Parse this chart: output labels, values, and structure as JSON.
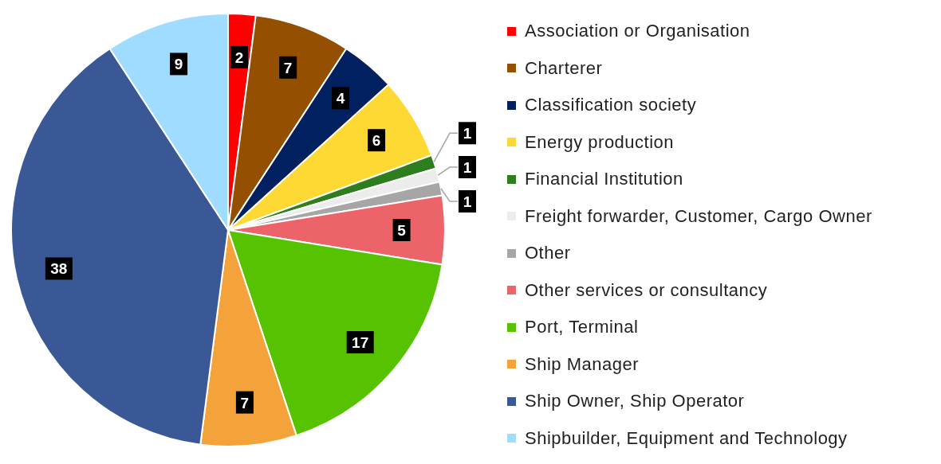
{
  "chart_data": {
    "type": "pie",
    "categories": [
      "Association or Organisation",
      "Charterer",
      "Classification society",
      "Energy production",
      "Financial Institution",
      "Freight forwarder, Customer, Cargo Owner",
      "Other",
      "Other services or consultancy",
      "Port, Terminal",
      "Ship Manager",
      "Ship Owner, Ship Operator",
      "Shipbuilder, Equipment and Technology"
    ],
    "values": [
      2,
      7,
      4,
      6,
      1,
      1,
      1,
      5,
      17,
      7,
      38,
      9
    ],
    "colors": [
      "#ff0000",
      "#954f00",
      "#002060",
      "#ffd933",
      "#2e7d1e",
      "#ececec",
      "#a6a6a6",
      "#ec6469",
      "#57c300",
      "#f4a23a",
      "#3a5896",
      "#9fdcff"
    ],
    "data_labels": true,
    "legend": "right"
  }
}
